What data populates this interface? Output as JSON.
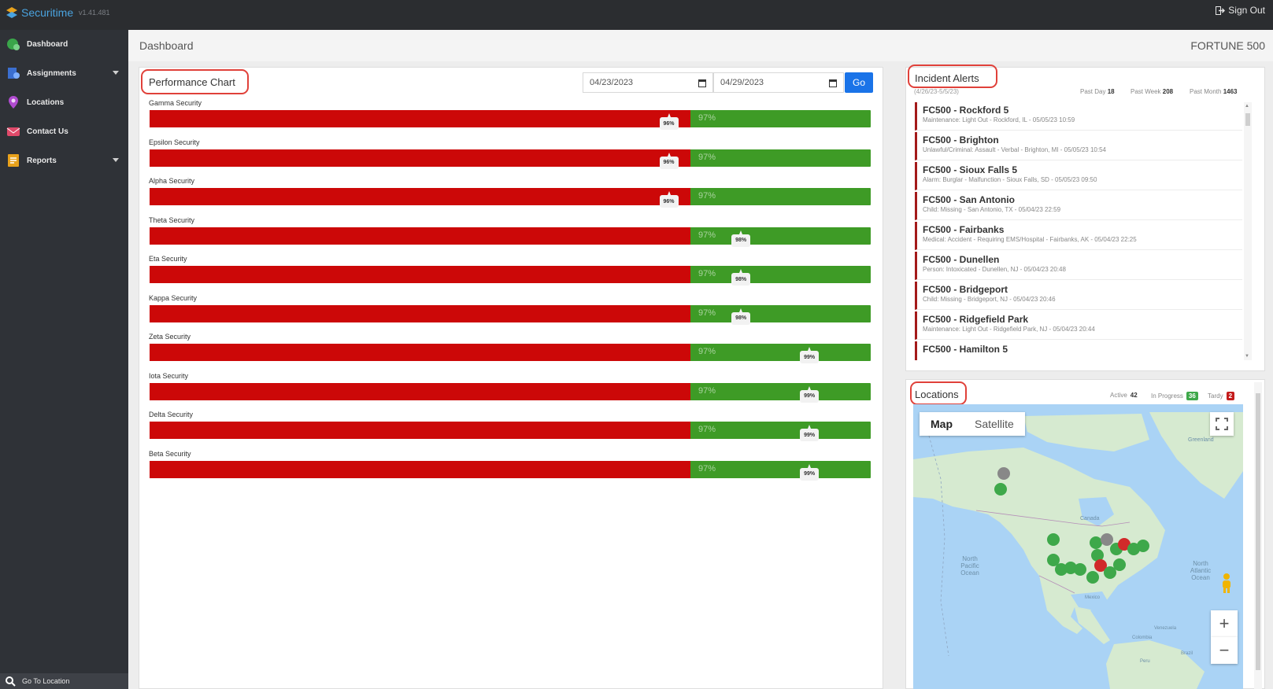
{
  "app": {
    "name": "Securitime",
    "version": "v1.41.481"
  },
  "topbar": {
    "signout_label": "Sign Out"
  },
  "sidebar": {
    "items": [
      {
        "label": "Dashboard",
        "icon": "dashboard-icon",
        "color": "#3aa54a"
      },
      {
        "label": "Assignments",
        "icon": "assignments-icon",
        "color": "#3b6fd0"
      },
      {
        "label": "Locations",
        "icon": "location-pin-icon",
        "color": "#b04bd0"
      },
      {
        "label": "Contact Us",
        "icon": "contact-icon",
        "color": "#e04a6a"
      },
      {
        "label": "Reports",
        "icon": "reports-icon",
        "color": "#e8a21c"
      }
    ],
    "go_to_location": "Go To Location"
  },
  "header": {
    "title": "Dashboard",
    "org": "FORTUNE 500"
  },
  "performance": {
    "title": "Performance Chart",
    "start_date": "04/23/2023",
    "end_date": "04/29/2023",
    "go_label": "Go",
    "target_label": "97%",
    "colors": {
      "below": "#cc0808",
      "target": "#3e9b26"
    },
    "bars": [
      {
        "name": "Gamma Security",
        "target": 0.75,
        "actual": 0.72,
        "value_label": "96%"
      },
      {
        "name": "Epsilon Security",
        "target": 0.75,
        "actual": 0.72,
        "value_label": "96%"
      },
      {
        "name": "Alpha Security",
        "target": 0.75,
        "actual": 0.72,
        "value_label": "96%"
      },
      {
        "name": "Theta Security",
        "target": 0.75,
        "actual": 0.82,
        "value_label": "98%"
      },
      {
        "name": "Eta Security",
        "target": 0.75,
        "actual": 0.82,
        "value_label": "98%"
      },
      {
        "name": "Kappa Security",
        "target": 0.75,
        "actual": 0.82,
        "value_label": "98%"
      },
      {
        "name": "Zeta Security",
        "target": 0.75,
        "actual": 0.915,
        "value_label": "99%"
      },
      {
        "name": "Iota Security",
        "target": 0.75,
        "actual": 0.915,
        "value_label": "99%"
      },
      {
        "name": "Delta Security",
        "target": 0.75,
        "actual": 0.915,
        "value_label": "99%"
      },
      {
        "name": "Beta Security",
        "target": 0.75,
        "actual": 0.915,
        "value_label": "99%"
      }
    ]
  },
  "alerts": {
    "title": "Incident Alerts",
    "range": "(4/26/23-5/5/23)",
    "stats": [
      {
        "label": "Past Day",
        "value": "18"
      },
      {
        "label": "Past Week",
        "value": "208"
      },
      {
        "label": "Past Month",
        "value": "1463"
      }
    ],
    "items": [
      {
        "title": "FC500 - Rockford 5",
        "detail": "Maintenance: Light Out - Rockford, IL - 05/05/23 10:59"
      },
      {
        "title": "FC500 - Brighton",
        "detail": "Unlawful/Criminal: Assault - Verbal - Brighton, MI - 05/05/23 10:54"
      },
      {
        "title": "FC500 - Sioux Falls 5",
        "detail": "Alarm: Burglar - Malfunction - Sioux Falls, SD - 05/05/23 09:50"
      },
      {
        "title": "FC500 - San Antonio",
        "detail": "Child: Missing - San Antonio, TX - 05/04/23 22:59"
      },
      {
        "title": "FC500 - Fairbanks",
        "detail": "Medical: Accident - Requiring EMS/Hospital - Fairbanks, AK - 05/04/23 22:25"
      },
      {
        "title": "FC500 - Dunellen",
        "detail": "Person: Intoxicated - Dunellen, NJ - 05/04/23 20:48"
      },
      {
        "title": "FC500 - Bridgeport",
        "detail": "Child: Missing - Bridgeport, NJ - 05/04/23 20:46"
      },
      {
        "title": "FC500 - Ridgefield Park",
        "detail": "Maintenance: Light Out - Ridgefield Park, NJ - 05/04/23 20:44"
      },
      {
        "title": "FC500 - Hamilton 5",
        "detail": ""
      }
    ]
  },
  "locations": {
    "title": "Locations",
    "active_label": "Active",
    "active_value": "42",
    "inprogress_label": "In Progress",
    "inprogress_value": "36",
    "tardy_label": "Tardy",
    "tardy_value": "2",
    "map": {
      "map_tab": "Map",
      "satellite_tab": "Satellite",
      "labels": {
        "greenland": "Greenland",
        "canada": "Canada",
        "north_pacific": "North Pacific Ocean",
        "north_atlantic": "North Atlantic Ocean",
        "mexico": "Mexico",
        "venezuela": "Venezuela",
        "colombia": "Colombia",
        "peru": "Peru",
        "brazil": "Brazil"
      }
    }
  }
}
